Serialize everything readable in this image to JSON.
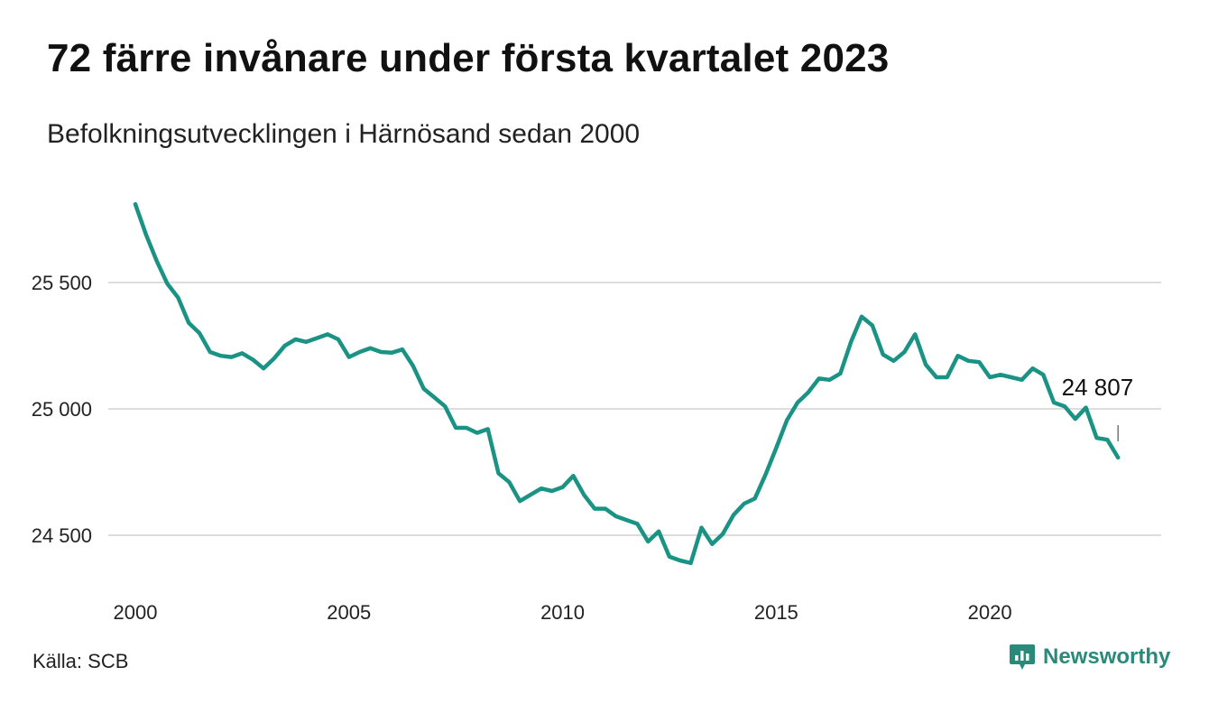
{
  "header": {
    "title": "72 färre invånare under första kvartalet 2023",
    "subtitle": "Befolkningsutvecklingen i Härnösand sedan 2000"
  },
  "footer": {
    "source": "Källa: SCB",
    "brand": "Newsworthy",
    "brand_icon": "chart-bubble-icon"
  },
  "colors": {
    "line": "#1a9384",
    "grid": "#dddddd",
    "brand": "#2a8a7a"
  },
  "chart_data": {
    "type": "line",
    "title": "72 färre invånare under första kvartalet 2023",
    "subtitle": "Befolkningsutvecklingen i Härnösand sedan 2000",
    "xlabel": "",
    "ylabel": "",
    "x_ticks": [
      2000,
      2005,
      2010,
      2015,
      2020
    ],
    "y_ticks": [
      24500,
      25000,
      25500
    ],
    "y_tick_labels": [
      "24 500",
      "25 000",
      "25 500"
    ],
    "xlim": [
      2000,
      2023.25
    ],
    "ylim": [
      24350,
      25850
    ],
    "grid": "horizontal",
    "end_label": "24 807",
    "series": [
      {
        "values": [
          [
            2000.0,
            25810
          ],
          [
            2000.25,
            25690
          ],
          [
            2000.5,
            25585
          ],
          [
            2000.75,
            25495
          ],
          [
            2001.0,
            25440
          ],
          [
            2001.25,
            25340
          ],
          [
            2001.5,
            25300
          ],
          [
            2001.75,
            25225
          ],
          [
            2002.0,
            25210
          ],
          [
            2002.25,
            25205
          ],
          [
            2002.5,
            25220
          ],
          [
            2002.75,
            25195
          ],
          [
            2003.0,
            25160
          ],
          [
            2003.25,
            25200
          ],
          [
            2003.5,
            25250
          ],
          [
            2003.75,
            25275
          ],
          [
            2004.0,
            25265
          ],
          [
            2004.25,
            25280
          ],
          [
            2004.5,
            25295
          ],
          [
            2004.75,
            25275
          ],
          [
            2005.0,
            25205
          ],
          [
            2005.25,
            25225
          ],
          [
            2005.5,
            25240
          ],
          [
            2005.75,
            25225
          ],
          [
            2006.0,
            25222
          ],
          [
            2006.25,
            25235
          ],
          [
            2006.5,
            25170
          ],
          [
            2006.75,
            25080
          ],
          [
            2007.0,
            25045
          ],
          [
            2007.25,
            25010
          ],
          [
            2007.5,
            24925
          ],
          [
            2007.75,
            24925
          ],
          [
            2008.0,
            24905
          ],
          [
            2008.25,
            24920
          ],
          [
            2008.5,
            24745
          ],
          [
            2008.75,
            24710
          ],
          [
            2009.0,
            24635
          ],
          [
            2009.25,
            24660
          ],
          [
            2009.5,
            24685
          ],
          [
            2009.75,
            24675
          ],
          [
            2010.0,
            24690
          ],
          [
            2010.25,
            24735
          ],
          [
            2010.5,
            24660
          ],
          [
            2010.75,
            24605
          ],
          [
            2011.0,
            24605
          ],
          [
            2011.25,
            24575
          ],
          [
            2011.5,
            24560
          ],
          [
            2011.75,
            24545
          ],
          [
            2012.0,
            24475
          ],
          [
            2012.25,
            24515
          ],
          [
            2012.5,
            24415
          ],
          [
            2012.75,
            24400
          ],
          [
            2013.0,
            24390
          ],
          [
            2013.25,
            24530
          ],
          [
            2013.5,
            24465
          ],
          [
            2013.75,
            24505
          ],
          [
            2014.0,
            24580
          ],
          [
            2014.25,
            24625
          ],
          [
            2014.5,
            24645
          ],
          [
            2014.75,
            24740
          ],
          [
            2015.0,
            24845
          ],
          [
            2015.25,
            24955
          ],
          [
            2015.5,
            25025
          ],
          [
            2015.75,
            25065
          ],
          [
            2016.0,
            25120
          ],
          [
            2016.25,
            25115
          ],
          [
            2016.5,
            25140
          ],
          [
            2016.75,
            25265
          ],
          [
            2017.0,
            25365
          ],
          [
            2017.25,
            25330
          ],
          [
            2017.5,
            25215
          ],
          [
            2017.75,
            25190
          ],
          [
            2018.0,
            25225
          ],
          [
            2018.25,
            25295
          ],
          [
            2018.5,
            25175
          ],
          [
            2018.75,
            25125
          ],
          [
            2019.0,
            25125
          ],
          [
            2019.25,
            25210
          ],
          [
            2019.5,
            25190
          ],
          [
            2019.75,
            25185
          ],
          [
            2020.0,
            25125
          ],
          [
            2020.25,
            25135
          ],
          [
            2020.5,
            25125
          ],
          [
            2020.75,
            25115
          ],
          [
            2021.0,
            25160
          ],
          [
            2021.25,
            25135
          ],
          [
            2021.5,
            25025
          ],
          [
            2021.75,
            25010
          ],
          [
            2022.0,
            24960
          ],
          [
            2022.25,
            25005
          ],
          [
            2022.5,
            24885
          ],
          [
            2022.75,
            24878
          ],
          [
            2023.0,
            24807
          ]
        ]
      }
    ]
  }
}
